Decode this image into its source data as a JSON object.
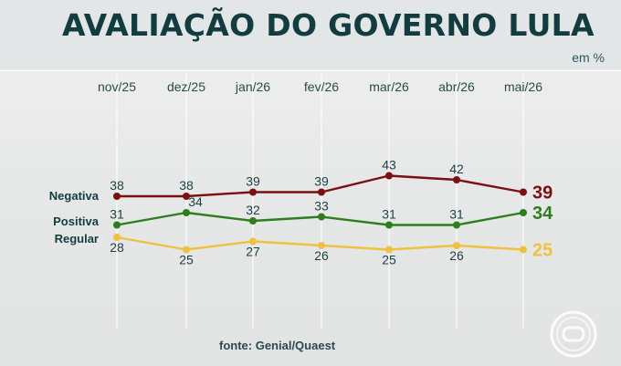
{
  "title": "AVALIAÇÃO DO GOVERNO LULA",
  "unit": "em %",
  "source": "fonte: Genial/Quaest",
  "logo_icon": "globo-logo-icon",
  "colors": {
    "negativa": "#7a1010",
    "positiva": "#2e7d1f",
    "regular": "#f0c040",
    "title": "#123c40"
  },
  "chart_data": {
    "type": "line",
    "title": "AVALIAÇÃO DO GOVERNO LULA",
    "ylabel": "em %",
    "grid": true,
    "categories": [
      "nov/25",
      "dez/25",
      "jan/26",
      "fev/26",
      "mar/26",
      "abr/26",
      "mai/26"
    ],
    "series": [
      {
        "name": "Negativa",
        "color": "#7a1010",
        "values": [
          38,
          38,
          39,
          39,
          43,
          42,
          39
        ]
      },
      {
        "name": "Positiva",
        "color": "#2e7d1f",
        "values": [
          31,
          34,
          32,
          33,
          31,
          31,
          34
        ]
      },
      {
        "name": "Regular",
        "color": "#f0c040",
        "values": [
          28,
          25,
          27,
          26,
          25,
          26,
          25
        ]
      }
    ]
  }
}
